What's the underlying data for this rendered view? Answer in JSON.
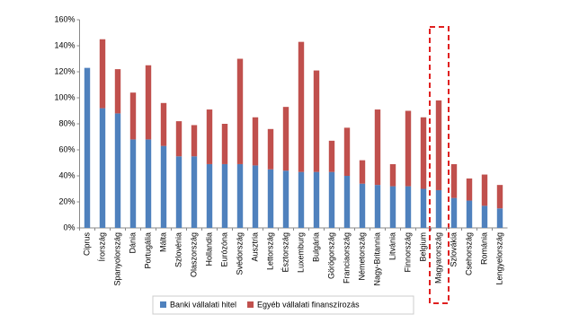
{
  "chart_data": {
    "type": "stacked_bar",
    "categories": [
      "Ciprus",
      "Írország",
      "Spanyolország",
      "Dánia",
      "Portugália",
      "Málta",
      "Szlovénia",
      "Olaszország",
      "Hollandia",
      "Eurózóna",
      "Svédország",
      "Ausztria",
      "Lettország",
      "Észtország",
      "Luxemburg",
      "Bulgária",
      "Görögország",
      "Franciaország",
      "Németország",
      "Nagy-Britannia",
      "Litvánia",
      "Finnország",
      "Belgium",
      "Magyarország",
      "Szlovákia",
      "Csehország",
      "Románia",
      "Lengyelország"
    ],
    "series": [
      {
        "name": "Banki vállalati hitel",
        "color": "#4f81bd",
        "values": [
          123,
          92,
          88,
          68,
          68,
          63,
          55,
          55,
          49,
          49,
          49,
          48,
          45,
          44,
          43,
          43,
          43,
          40,
          34,
          33,
          32,
          32,
          30,
          29,
          23,
          21,
          17,
          15
        ]
      },
      {
        "name": "Egyéb vállalati finanszírozás",
        "color": "#c0504d",
        "values": [
          0,
          53,
          34,
          36,
          57,
          33,
          27,
          24,
          42,
          31,
          81,
          37,
          31,
          49,
          100,
          78,
          24,
          37,
          18,
          58,
          17,
          58,
          55,
          69,
          26,
          17,
          24,
          18
        ]
      }
    ],
    "ylim": [
      0,
      160
    ],
    "yticks": [
      {
        "value": 0,
        "label": "0%"
      },
      {
        "value": 20,
        "label": "20%"
      },
      {
        "value": 40,
        "label": "40%"
      },
      {
        "value": 60,
        "label": "60%"
      },
      {
        "value": 80,
        "label": "80%"
      },
      {
        "value": 100,
        "label": "100%"
      },
      {
        "value": 120,
        "label": "120%"
      },
      {
        "value": 140,
        "label": "140%"
      },
      {
        "value": 160,
        "label": "160%"
      }
    ],
    "legend": "bottom"
  }
}
